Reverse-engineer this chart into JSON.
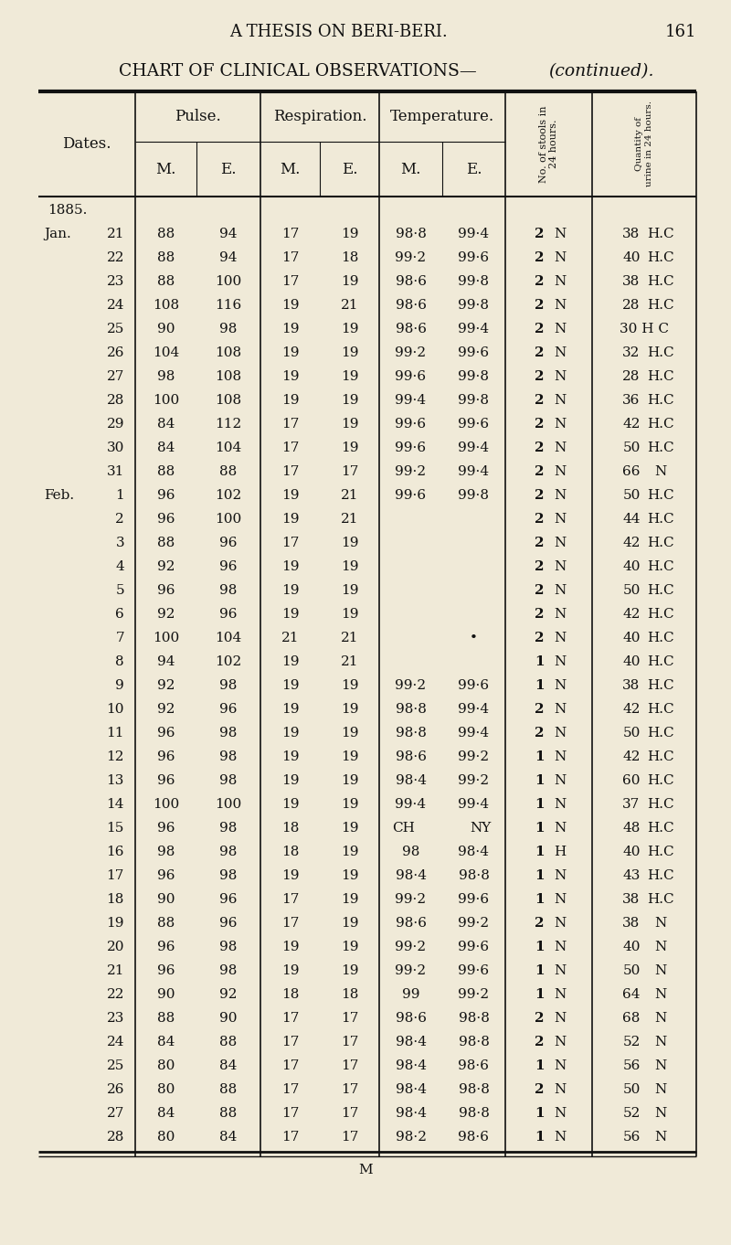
{
  "page_header": "A THESIS ON BERI-BERI.",
  "page_number": "161",
  "rows": [
    {
      "date": "1885.",
      "pm": "",
      "pe": "",
      "rm": "",
      "re": "",
      "tm": "",
      "te": "",
      "stools": "",
      "urine": ""
    },
    {
      "date": "Jan. 21",
      "pm": "88",
      "pe": "94",
      "rm": "17",
      "re": "19",
      "tm": "98·8",
      "te": "99·4",
      "stools": "2 N",
      "urine": "38 H.C"
    },
    {
      "date": "22",
      "pm": "88",
      "pe": "94",
      "rm": "17",
      "re": "18",
      "tm": "99·2",
      "te": "99·6",
      "stools": "2 N",
      "urine": "40 H.C"
    },
    {
      "date": "23",
      "pm": "88",
      "pe": "100",
      "rm": "17",
      "re": "19",
      "tm": "98·6",
      "te": "99·8",
      "stools": "2 N",
      "urine": "38 H.C"
    },
    {
      "date": "24",
      "pm": "108",
      "pe": "116",
      "rm": "19",
      "re": "21",
      "tm": "98·6",
      "te": "99·8",
      "stools": "2 N",
      "urine": "28 H.C"
    },
    {
      "date": "25",
      "pm": "90",
      "pe": "98",
      "rm": "19",
      "re": "19",
      "tm": "98·6",
      "te": "99·4",
      "stools": "2 N",
      "urine": "30 H C"
    },
    {
      "date": "26",
      "pm": "104",
      "pe": "108",
      "rm": "19",
      "re": "19",
      "tm": "99·2",
      "te": "99·6",
      "stools": "2 N",
      "urine": "32 H.C"
    },
    {
      "date": "27",
      "pm": "98",
      "pe": "108",
      "rm": "19",
      "re": "19",
      "tm": "99·6",
      "te": "99·8",
      "stools": "2 N",
      "urine": "28 H.C"
    },
    {
      "date": "28",
      "pm": "100",
      "pe": "108",
      "rm": "19",
      "re": "19",
      "tm": "99·4",
      "te": "99·8",
      "stools": "2 N",
      "urine": "36 H.C"
    },
    {
      "date": "29",
      "pm": "84",
      "pe": "112",
      "rm": "17",
      "re": "19",
      "tm": "99·6",
      "te": "99·6",
      "stools": "2 N",
      "urine": "42 H.C"
    },
    {
      "date": "30",
      "pm": "84",
      "pe": "104",
      "rm": "17",
      "re": "19",
      "tm": "99·6",
      "te": "99·4",
      "stools": "2 N",
      "urine": "50 H.C"
    },
    {
      "date": "31",
      "pm": "88",
      "pe": "88",
      "rm": "17",
      "re": "17",
      "tm": "99·2",
      "te": "99·4",
      "stools": "2 N",
      "urine": "66 N"
    },
    {
      "date": "Feb. 1",
      "pm": "96",
      "pe": "102",
      "rm": "19",
      "re": "21",
      "tm": "99·6",
      "te": "99·8",
      "stools": "2 N",
      "urine": "50 H.C"
    },
    {
      "date": "2",
      "pm": "96",
      "pe": "100",
      "rm": "19",
      "re": "21",
      "tm": "",
      "te": "",
      "stools": "2 N",
      "urine": "44 H.C"
    },
    {
      "date": "3",
      "pm": "88",
      "pe": "96",
      "rm": "17",
      "re": "19",
      "tm": "",
      "te": "",
      "stools": "2 N",
      "urine": "42 H.C"
    },
    {
      "date": "4",
      "pm": "92",
      "pe": "96",
      "rm": "19",
      "re": "19",
      "tm": "",
      "te": "",
      "stools": "2 N",
      "urine": "40 H.C"
    },
    {
      "date": "5",
      "pm": "96",
      "pe": "98",
      "rm": "19",
      "re": "19",
      "tm": "",
      "te": "",
      "stools": "2 N",
      "urine": "50 H.C"
    },
    {
      "date": "6",
      "pm": "92",
      "pe": "96",
      "rm": "19",
      "re": "19",
      "tm": "",
      "te": "",
      "stools": "2 N",
      "urine": "42 H.C"
    },
    {
      "date": "7",
      "pm": "100",
      "pe": "104",
      "rm": "21",
      "re": "21",
      "tm": "",
      "te": "•",
      "stools": "2 N",
      "urine": "40 H.C"
    },
    {
      "date": "8",
      "pm": "94",
      "pe": "102",
      "rm": "19",
      "re": "21",
      "tm": "",
      "te": "",
      "stools": "1 N",
      "urine": "40 H.C"
    },
    {
      "date": "9",
      "pm": "92",
      "pe": "98",
      "rm": "19",
      "re": "19",
      "tm": "99·2",
      "te": "99·6",
      "stools": "1 N",
      "urine": "38 H.C"
    },
    {
      "date": "10",
      "pm": "92",
      "pe": "96",
      "rm": "19",
      "re": "19",
      "tm": "98·8",
      "te": "99·4",
      "stools": "2 N",
      "urine": "42 H.C"
    },
    {
      "date": "11",
      "pm": "96",
      "pe": "98",
      "rm": "19",
      "re": "19",
      "tm": "98·8",
      "te": "99·4",
      "stools": "2 N",
      "urine": "50 H.C"
    },
    {
      "date": "12",
      "pm": "96",
      "pe": "98",
      "rm": "19",
      "re": "19",
      "tm": "98·6",
      "te": "99·2",
      "stools": "1 N",
      "urine": "42 H.C"
    },
    {
      "date": "13",
      "pm": "96",
      "pe": "98",
      "rm": "19",
      "re": "19",
      "tm": "98·4",
      "te": "99·2",
      "stools": "1 N",
      "urine": "60 H.C"
    },
    {
      "date": "14",
      "pm": "100",
      "pe": "100",
      "rm": "19",
      "re": "19",
      "tm": "99·4",
      "te": "99·4",
      "stools": "1 N",
      "urine": "37 H.C"
    },
    {
      "date": "15",
      "pm": "96",
      "pe": "98",
      "rm": "18",
      "re": "19",
      "tm": "CH",
      "te": "NY",
      "stools": "1 N",
      "urine": "48 H.C"
    },
    {
      "date": "16",
      "pm": "98",
      "pe": "98",
      "rm": "18",
      "re": "19",
      "tm": "98",
      "te": "98·4",
      "stools": "1 H",
      "urine": "40 H.C"
    },
    {
      "date": "17",
      "pm": "96",
      "pe": "98",
      "rm": "19",
      "re": "19",
      "tm": "98·4",
      "te": "98·8",
      "stools": "1 N",
      "urine": "43 H.C"
    },
    {
      "date": "18",
      "pm": "90",
      "pe": "96",
      "rm": "17",
      "re": "19",
      "tm": "99·2",
      "te": "99·6",
      "stools": "1 N",
      "urine": "38 H.C"
    },
    {
      "date": "19",
      "pm": "88",
      "pe": "96",
      "rm": "17",
      "re": "19",
      "tm": "98·6",
      "te": "99·2",
      "stools": "2 N",
      "urine": "38 N"
    },
    {
      "date": "20",
      "pm": "96",
      "pe": "98",
      "rm": "19",
      "re": "19",
      "tm": "99·2",
      "te": "99·6",
      "stools": "1 N",
      "urine": "40 N"
    },
    {
      "date": "21",
      "pm": "96",
      "pe": "98",
      "rm": "19",
      "re": "19",
      "tm": "99·2",
      "te": "99·6",
      "stools": "1 N",
      "urine": "50 N"
    },
    {
      "date": "22",
      "pm": "90",
      "pe": "92",
      "rm": "18",
      "re": "18",
      "tm": "99",
      "te": "99·2",
      "stools": "1 N",
      "urine": "64 N"
    },
    {
      "date": "23",
      "pm": "88",
      "pe": "90",
      "rm": "17",
      "re": "17",
      "tm": "98·6",
      "te": "98·8",
      "stools": "2 N",
      "urine": "68 N"
    },
    {
      "date": "24",
      "pm": "84",
      "pe": "88",
      "rm": "17",
      "re": "17",
      "tm": "98·4",
      "te": "98·8",
      "stools": "2 N",
      "urine": "52 N"
    },
    {
      "date": "25",
      "pm": "80",
      "pe": "84",
      "rm": "17",
      "re": "17",
      "tm": "98·4",
      "te": "98·6",
      "stools": "1 N",
      "urine": "56 N"
    },
    {
      "date": "26",
      "pm": "80",
      "pe": "88",
      "rm": "17",
      "re": "17",
      "tm": "98·4",
      "te": "98·8",
      "stools": "2 N",
      "urine": "50 N"
    },
    {
      "date": "27",
      "pm": "84",
      "pe": "88",
      "rm": "17",
      "re": "17",
      "tm": "98·4",
      "te": "98·8",
      "stools": "1 N",
      "urine": "52 N"
    },
    {
      "date": "28",
      "pm": "80",
      "pe": "84",
      "rm": "17",
      "re": "17",
      "tm": "98·2",
      "te": "98·6",
      "stools": "1 N",
      "urine": "56 N"
    }
  ],
  "footer": "M",
  "bg_color": "#f0ead8",
  "text_color": "#111111"
}
